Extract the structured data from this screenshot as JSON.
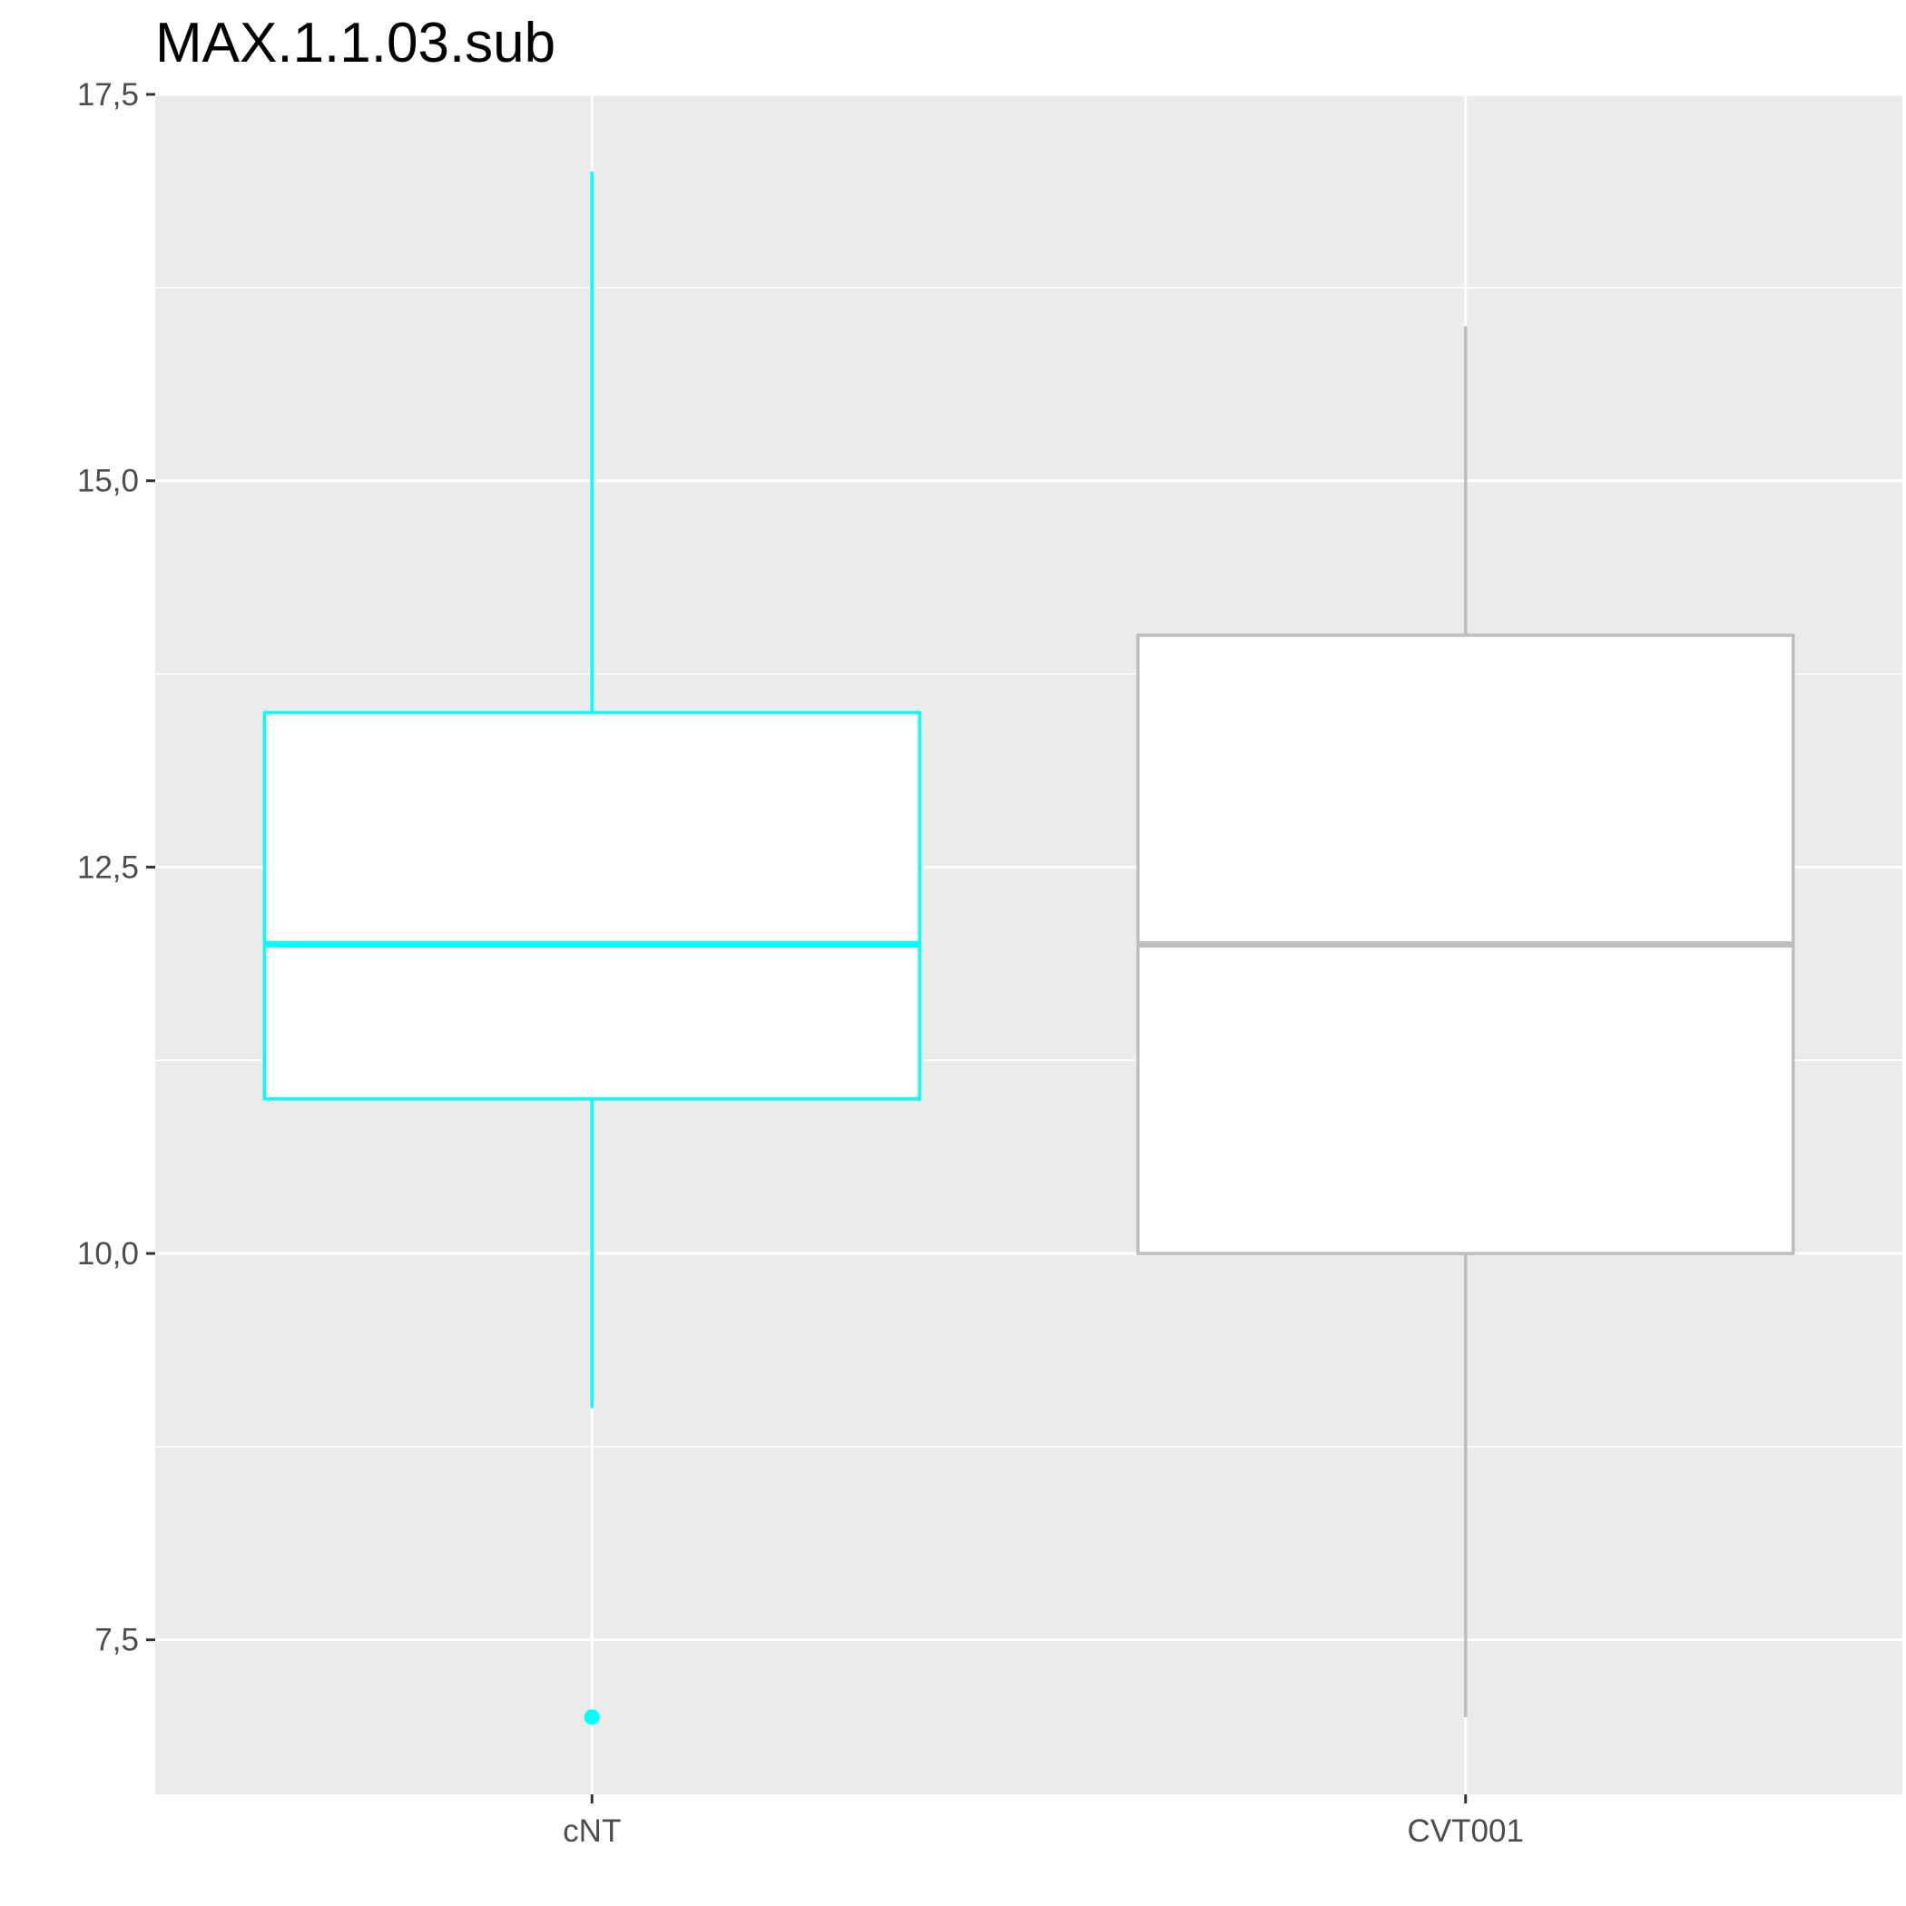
{
  "chart_data": {
    "type": "boxplot",
    "title": "MAX.1.1.03.sub",
    "xlabel": "",
    "ylabel": "",
    "categories": [
      "cNT",
      "CVT001"
    ],
    "y_ticks": [
      7.5,
      10.0,
      12.5,
      15.0,
      17.5
    ],
    "y_tick_labels": [
      "7,5",
      "10,0",
      "12,5",
      "15,0",
      "17,5"
    ],
    "ylim": [
      6.5,
      17.5
    ],
    "grid": true,
    "legend": "none",
    "series": [
      {
        "category": "cNT",
        "whisker_low": 9,
        "q1": 11,
        "median": 12,
        "q3": 13.5,
        "whisker_high": 17,
        "outliers": [
          7
        ],
        "color": "#00ffff"
      },
      {
        "category": "CVT001",
        "whisker_low": 7,
        "q1": 10,
        "median": 12,
        "q3": 14,
        "whisker_high": 16,
        "outliers": [],
        "color": "#bebebe"
      }
    ],
    "colors": {
      "panel_background": "#ebebeb",
      "grid": "#ffffff",
      "box_fill": "#ffffff",
      "axis_text": "#4d4d4d",
      "tick": "#333333"
    }
  }
}
